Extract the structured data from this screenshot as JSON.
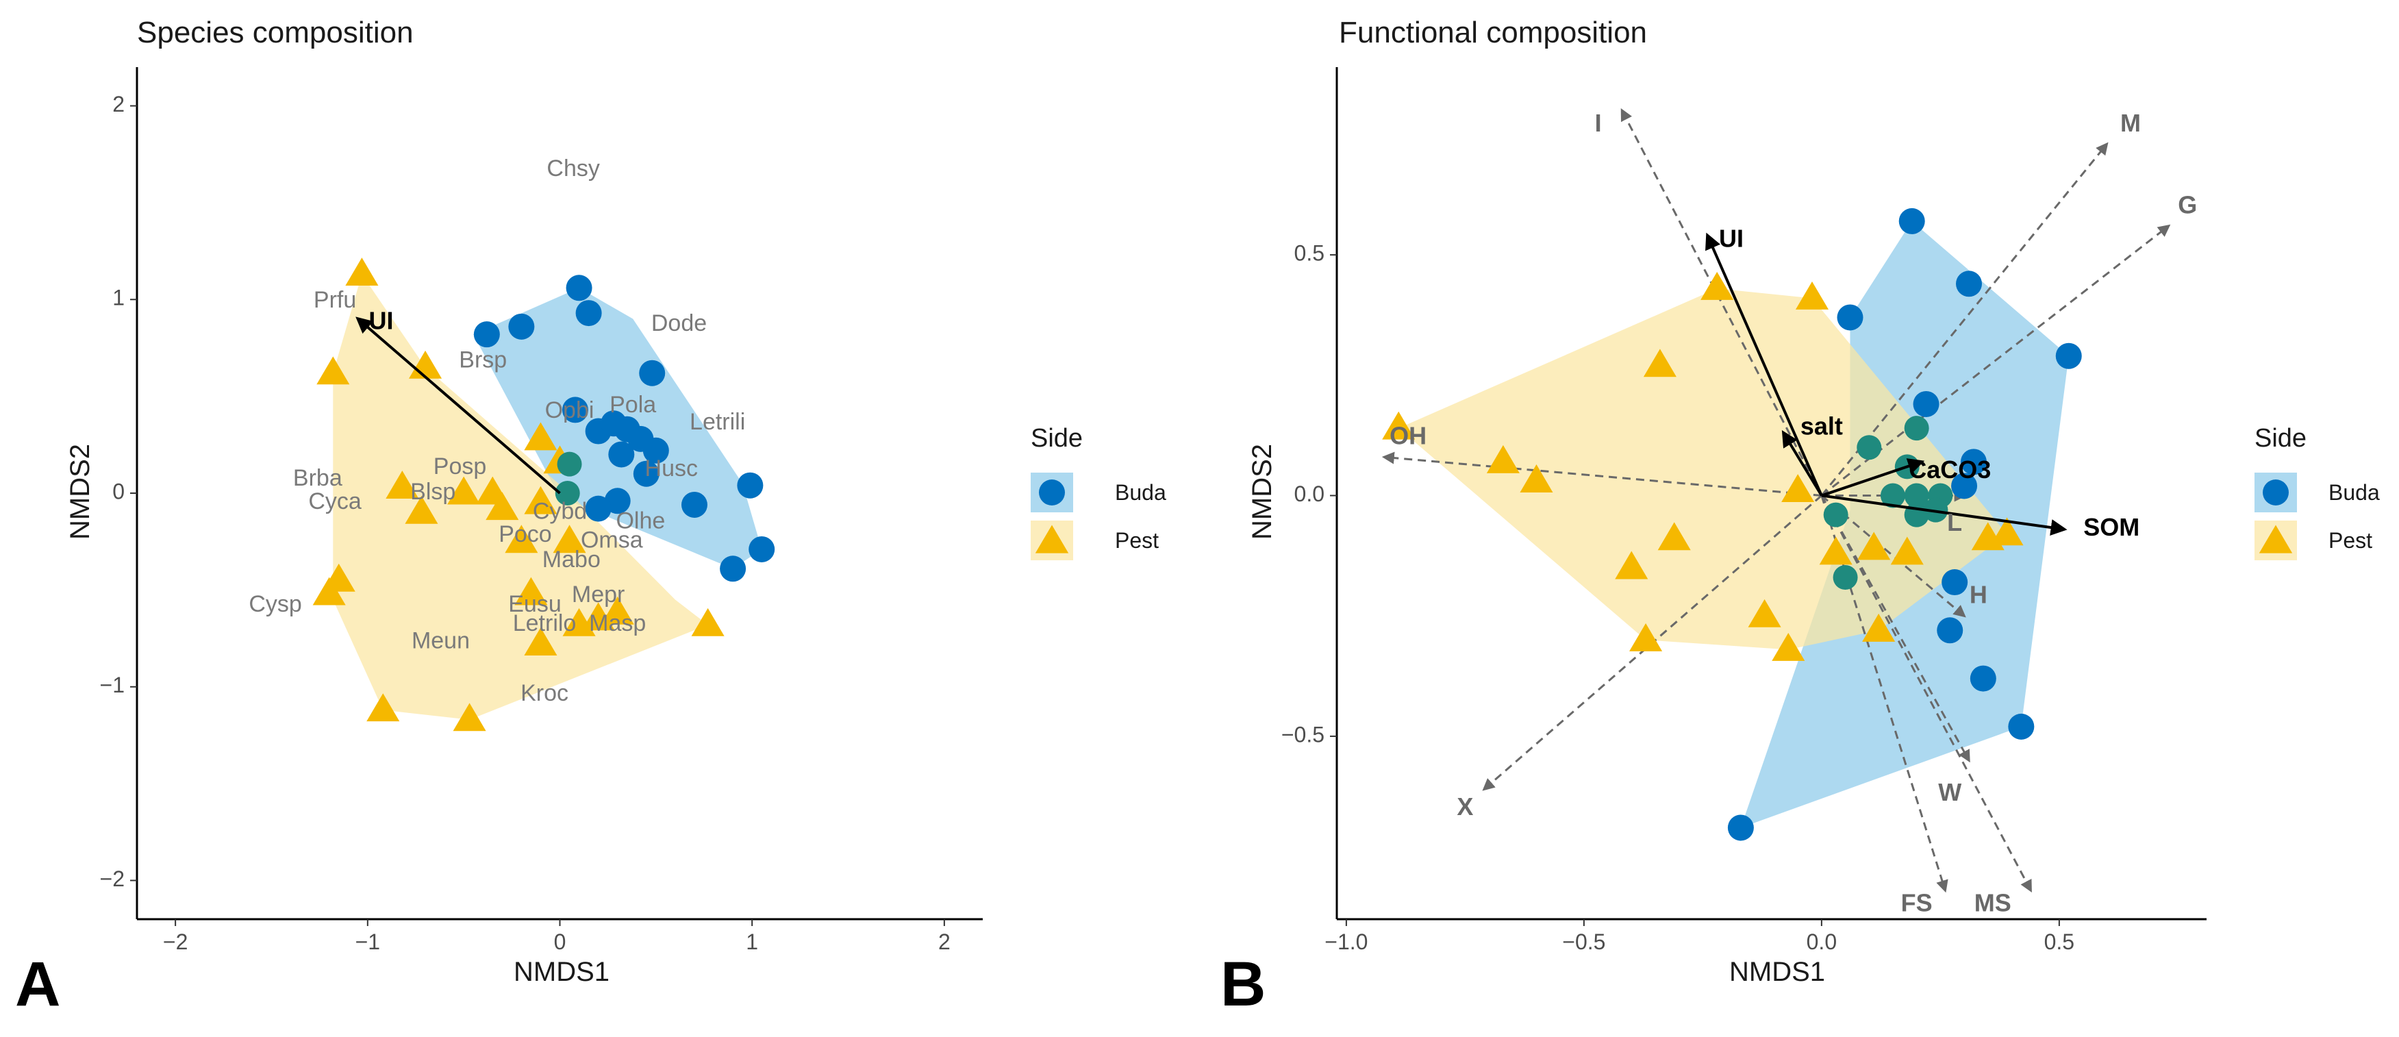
{
  "figure": {
    "colors": {
      "buda_point": "#0070c0",
      "buda_fill": "#8ecbea",
      "pest_point": "#f5b800",
      "pest_fill": "#fbe6a2",
      "overlap_point": "#1f8a7e",
      "fitted_arrow": "#000000",
      "trait_arrow": "#696969",
      "species_text": "#7a7a7a"
    }
  },
  "chart_data": [
    {
      "type": "scatter",
      "panel_letter": "A",
      "title": "Species composition",
      "xlabel": "NMDS1",
      "ylabel": "NMDS2",
      "xlim": [
        -2.2,
        2.2
      ],
      "ylim": [
        -2.2,
        2.2
      ],
      "xticks": [
        -2,
        -1,
        0,
        1,
        2
      ],
      "yticks": [
        -2,
        -1,
        0,
        1,
        2
      ],
      "x_tick_labels": [
        "−2",
        "−1",
        "0",
        "1",
        "2"
      ],
      "y_tick_labels": [
        "−2",
        "−1",
        "0",
        "1",
        "2"
      ],
      "legend": {
        "title": "Side",
        "entries": [
          "Buda",
          "Pest"
        ]
      },
      "hulls": [
        {
          "group": "Buda",
          "points": [
            [
              0.1,
              1.06
            ],
            [
              0.38,
              0.9
            ],
            [
              0.95,
              0.05
            ],
            [
              1.05,
              -0.29
            ],
            [
              0.9,
              -0.39
            ],
            [
              0.0,
              -0.02
            ],
            [
              -0.45,
              0.82
            ]
          ]
        },
        {
          "group": "Pest",
          "points": [
            [
              -1.03,
              1.13
            ],
            [
              -0.7,
              0.65
            ],
            [
              0.05,
              0.0
            ],
            [
              0.6,
              -0.55
            ],
            [
              0.77,
              -0.68
            ],
            [
              -0.47,
              -1.17
            ],
            [
              -0.92,
              -1.12
            ],
            [
              -1.18,
              -0.55
            ],
            [
              -1.18,
              0.62
            ]
          ]
        }
      ],
      "series": [
        {
          "name": "Buda",
          "shape": "circle",
          "points": [
            [
              0.1,
              1.06
            ],
            [
              0.15,
              0.93
            ],
            [
              -0.2,
              0.86
            ],
            [
              -0.38,
              0.82
            ],
            [
              0.48,
              0.62
            ],
            [
              0.08,
              0.43
            ],
            [
              0.2,
              0.32
            ],
            [
              0.28,
              0.36
            ],
            [
              0.35,
              0.33
            ],
            [
              0.42,
              0.28
            ],
            [
              0.5,
              0.22
            ],
            [
              0.32,
              0.2
            ],
            [
              0.45,
              0.1
            ],
            [
              0.99,
              0.04
            ],
            [
              0.3,
              -0.04
            ],
            [
              0.7,
              -0.06
            ],
            [
              0.2,
              -0.08
            ],
            [
              1.05,
              -0.29
            ],
            [
              0.9,
              -0.39
            ]
          ]
        },
        {
          "name": "Pest",
          "shape": "triangle",
          "points": [
            [
              -1.03,
              1.13
            ],
            [
              -0.7,
              0.65
            ],
            [
              -1.18,
              0.62
            ],
            [
              -0.5,
              0.0
            ],
            [
              -0.35,
              0.0
            ],
            [
              -0.82,
              0.03
            ],
            [
              -0.72,
              -0.1
            ],
            [
              -0.3,
              -0.08
            ],
            [
              -0.2,
              -0.25
            ],
            [
              0.05,
              -0.25
            ],
            [
              -0.1,
              -0.05
            ],
            [
              -1.15,
              -0.45
            ],
            [
              -1.2,
              -0.52
            ],
            [
              -0.15,
              -0.52
            ],
            [
              0.2,
              -0.65
            ],
            [
              0.3,
              -0.62
            ],
            [
              0.1,
              -0.68
            ],
            [
              -0.1,
              -0.78
            ],
            [
              0.77,
              -0.68
            ],
            [
              -0.92,
              -1.12
            ],
            [
              -0.47,
              -1.17
            ],
            [
              0.0,
              0.16
            ],
            [
              -0.1,
              0.28
            ]
          ]
        }
      ],
      "overlap_points": [
        [
          0.05,
          0.15
        ],
        [
          0.04,
          0.0
        ]
      ],
      "species_labels": [
        {
          "text": "Chsy",
          "x": 0.07,
          "y": 1.67
        },
        {
          "text": "Dode",
          "x": 0.62,
          "y": 0.87
        },
        {
          "text": "Prfu",
          "x": -1.17,
          "y": 0.99
        },
        {
          "text": "Brsp",
          "x": -0.4,
          "y": 0.68
        },
        {
          "text": "Opbi",
          "x": 0.05,
          "y": 0.42
        },
        {
          "text": "Pola",
          "x": 0.38,
          "y": 0.45
        },
        {
          "text": "Letrili",
          "x": 0.82,
          "y": 0.36
        },
        {
          "text": "Husc",
          "x": 0.58,
          "y": 0.12
        },
        {
          "text": "Posp",
          "x": -0.52,
          "y": 0.13
        },
        {
          "text": "Brba",
          "x": -1.26,
          "y": 0.07
        },
        {
          "text": "Cyca",
          "x": -1.17,
          "y": -0.05
        },
        {
          "text": "Blsp",
          "x": -0.66,
          "y": 0.0
        },
        {
          "text": "Cybd",
          "x": 0.0,
          "y": -0.1
        },
        {
          "text": "Olhe",
          "x": 0.42,
          "y": -0.15
        },
        {
          "text": "Poco",
          "x": -0.18,
          "y": -0.22
        },
        {
          "text": "Omsa",
          "x": 0.27,
          "y": -0.25
        },
        {
          "text": "Mabo",
          "x": 0.06,
          "y": -0.35
        },
        {
          "text": "Mepr",
          "x": 0.2,
          "y": -0.53
        },
        {
          "text": "Eusu",
          "x": -0.13,
          "y": -0.58
        },
        {
          "text": "Cysp",
          "x": -1.48,
          "y": -0.58
        },
        {
          "text": "Letrilo",
          "x": -0.08,
          "y": -0.68
        },
        {
          "text": "Masp",
          "x": 0.3,
          "y": -0.68
        },
        {
          "text": "Meun",
          "x": -0.62,
          "y": -0.77
        },
        {
          "text": "Kroc",
          "x": -0.08,
          "y": -1.04
        }
      ],
      "vectors": [
        {
          "name": "UI",
          "x": -1.05,
          "y": 0.9,
          "style": "fitted",
          "label_x": -0.93,
          "label_y": 0.88
        }
      ]
    },
    {
      "type": "scatter",
      "panel_letter": "B",
      "title": "Functional composition",
      "xlabel": "NMDS1",
      "ylabel": "NMDS2",
      "xlim": [
        -1.02,
        0.81
      ],
      "ylim": [
        -0.88,
        0.89
      ],
      "xticks": [
        -1.0,
        -0.5,
        0.0,
        0.5
      ],
      "yticks": [
        -0.5,
        0.0,
        0.5
      ],
      "x_tick_labels": [
        "−1.0",
        "−0.5",
        "0.0",
        "0.5"
      ],
      "y_tick_labels": [
        "−0.5",
        "0.0",
        "0.5"
      ],
      "legend": {
        "title": "Side",
        "entries": [
          "Buda",
          "Pest"
        ]
      },
      "hulls": [
        {
          "group": "Buda",
          "points": [
            [
              0.19,
              0.57
            ],
            [
              0.52,
              0.29
            ],
            [
              0.42,
              -0.48
            ],
            [
              -0.17,
              -0.69
            ],
            [
              0.06,
              -0.03
            ],
            [
              0.06,
              0.37
            ]
          ]
        },
        {
          "group": "Pest",
          "points": [
            [
              -0.22,
              0.43
            ],
            [
              -0.02,
              0.41
            ],
            [
              0.39,
              -0.08
            ],
            [
              0.12,
              -0.28
            ],
            [
              -0.07,
              -0.32
            ],
            [
              -0.37,
              -0.3
            ],
            [
              -0.89,
              0.14
            ]
          ]
        }
      ],
      "series": [
        {
          "name": "Buda",
          "shape": "circle",
          "points": [
            [
              0.19,
              0.57
            ],
            [
              0.31,
              0.44
            ],
            [
              0.52,
              0.29
            ],
            [
              0.06,
              0.37
            ],
            [
              0.22,
              0.19
            ],
            [
              0.32,
              0.07
            ],
            [
              0.3,
              0.02
            ],
            [
              0.28,
              -0.18
            ],
            [
              0.27,
              -0.28
            ],
            [
              0.34,
              -0.38
            ],
            [
              0.42,
              -0.48
            ],
            [
              -0.17,
              -0.69
            ]
          ]
        },
        {
          "name": "Pest",
          "shape": "triangle",
          "points": [
            [
              -0.22,
              0.43
            ],
            [
              -0.02,
              0.41
            ],
            [
              -0.34,
              0.27
            ],
            [
              -0.89,
              0.14
            ],
            [
              -0.67,
              0.07
            ],
            [
              -0.6,
              0.03
            ],
            [
              -0.31,
              -0.09
            ],
            [
              -0.4,
              -0.15
            ],
            [
              -0.37,
              -0.3
            ],
            [
              -0.12,
              -0.25
            ],
            [
              -0.07,
              -0.32
            ],
            [
              0.03,
              -0.12
            ],
            [
              0.11,
              -0.11
            ],
            [
              0.18,
              -0.12
            ],
            [
              0.39,
              -0.08
            ],
            [
              0.35,
              -0.09
            ],
            [
              0.12,
              -0.28
            ],
            [
              -0.05,
              0.01
            ]
          ]
        }
      ],
      "overlap_points": [
        [
          0.1,
          0.1
        ],
        [
          0.2,
          0.14
        ],
        [
          0.18,
          0.06
        ],
        [
          0.15,
          0.0
        ],
        [
          0.2,
          0.0
        ],
        [
          0.25,
          0.0
        ],
        [
          0.03,
          -0.04
        ],
        [
          0.2,
          -0.04
        ],
        [
          0.24,
          -0.03
        ],
        [
          0.05,
          -0.17
        ]
      ],
      "vectors": [
        {
          "name": "UI",
          "x": -0.24,
          "y": 0.54,
          "style": "fitted",
          "label_x": -0.19,
          "label_y": 0.53
        },
        {
          "name": "salt",
          "x": -0.08,
          "y": 0.13,
          "style": "fitted",
          "label_x": 0.0,
          "label_y": 0.14
        },
        {
          "name": "CaCO3",
          "x": 0.21,
          "y": 0.07,
          "style": "fitted",
          "label_x": 0.27,
          "label_y": 0.05
        },
        {
          "name": "SOM",
          "x": 0.51,
          "y": -0.07,
          "style": "fitted",
          "label_x": 0.61,
          "label_y": -0.07
        },
        {
          "name": "OH",
          "x": -0.92,
          "y": 0.08,
          "style": "trait",
          "label_x": -0.87,
          "label_y": 0.12
        },
        {
          "name": "I",
          "x": -0.42,
          "y": 0.8,
          "style": "trait",
          "label_x": -0.47,
          "label_y": 0.77
        },
        {
          "name": "M",
          "x": 0.6,
          "y": 0.73,
          "style": "trait",
          "label_x": 0.65,
          "label_y": 0.77
        },
        {
          "name": "G",
          "x": 0.73,
          "y": 0.56,
          "style": "trait",
          "label_x": 0.77,
          "label_y": 0.6
        },
        {
          "name": "X",
          "x": -0.71,
          "y": -0.61,
          "style": "trait",
          "label_x": -0.75,
          "label_y": -0.65
        },
        {
          "name": "FS",
          "x": 0.26,
          "y": -0.82,
          "style": "trait",
          "label_x": 0.2,
          "label_y": -0.85
        },
        {
          "name": "MS",
          "x": 0.44,
          "y": -0.82,
          "style": "trait",
          "label_x": 0.36,
          "label_y": -0.85
        },
        {
          "name": "W",
          "x": 0.31,
          "y": -0.55,
          "style": "trait",
          "label_x": 0.27,
          "label_y": -0.62
        },
        {
          "name": "H",
          "x": 0.3,
          "y": -0.25,
          "style": "trait",
          "label_x": 0.33,
          "label_y": -0.21
        },
        {
          "name": "L",
          "x": 0.3,
          "y": 0.0,
          "style": "trait",
          "label_x": 0.28,
          "label_y": -0.06
        }
      ]
    }
  ]
}
